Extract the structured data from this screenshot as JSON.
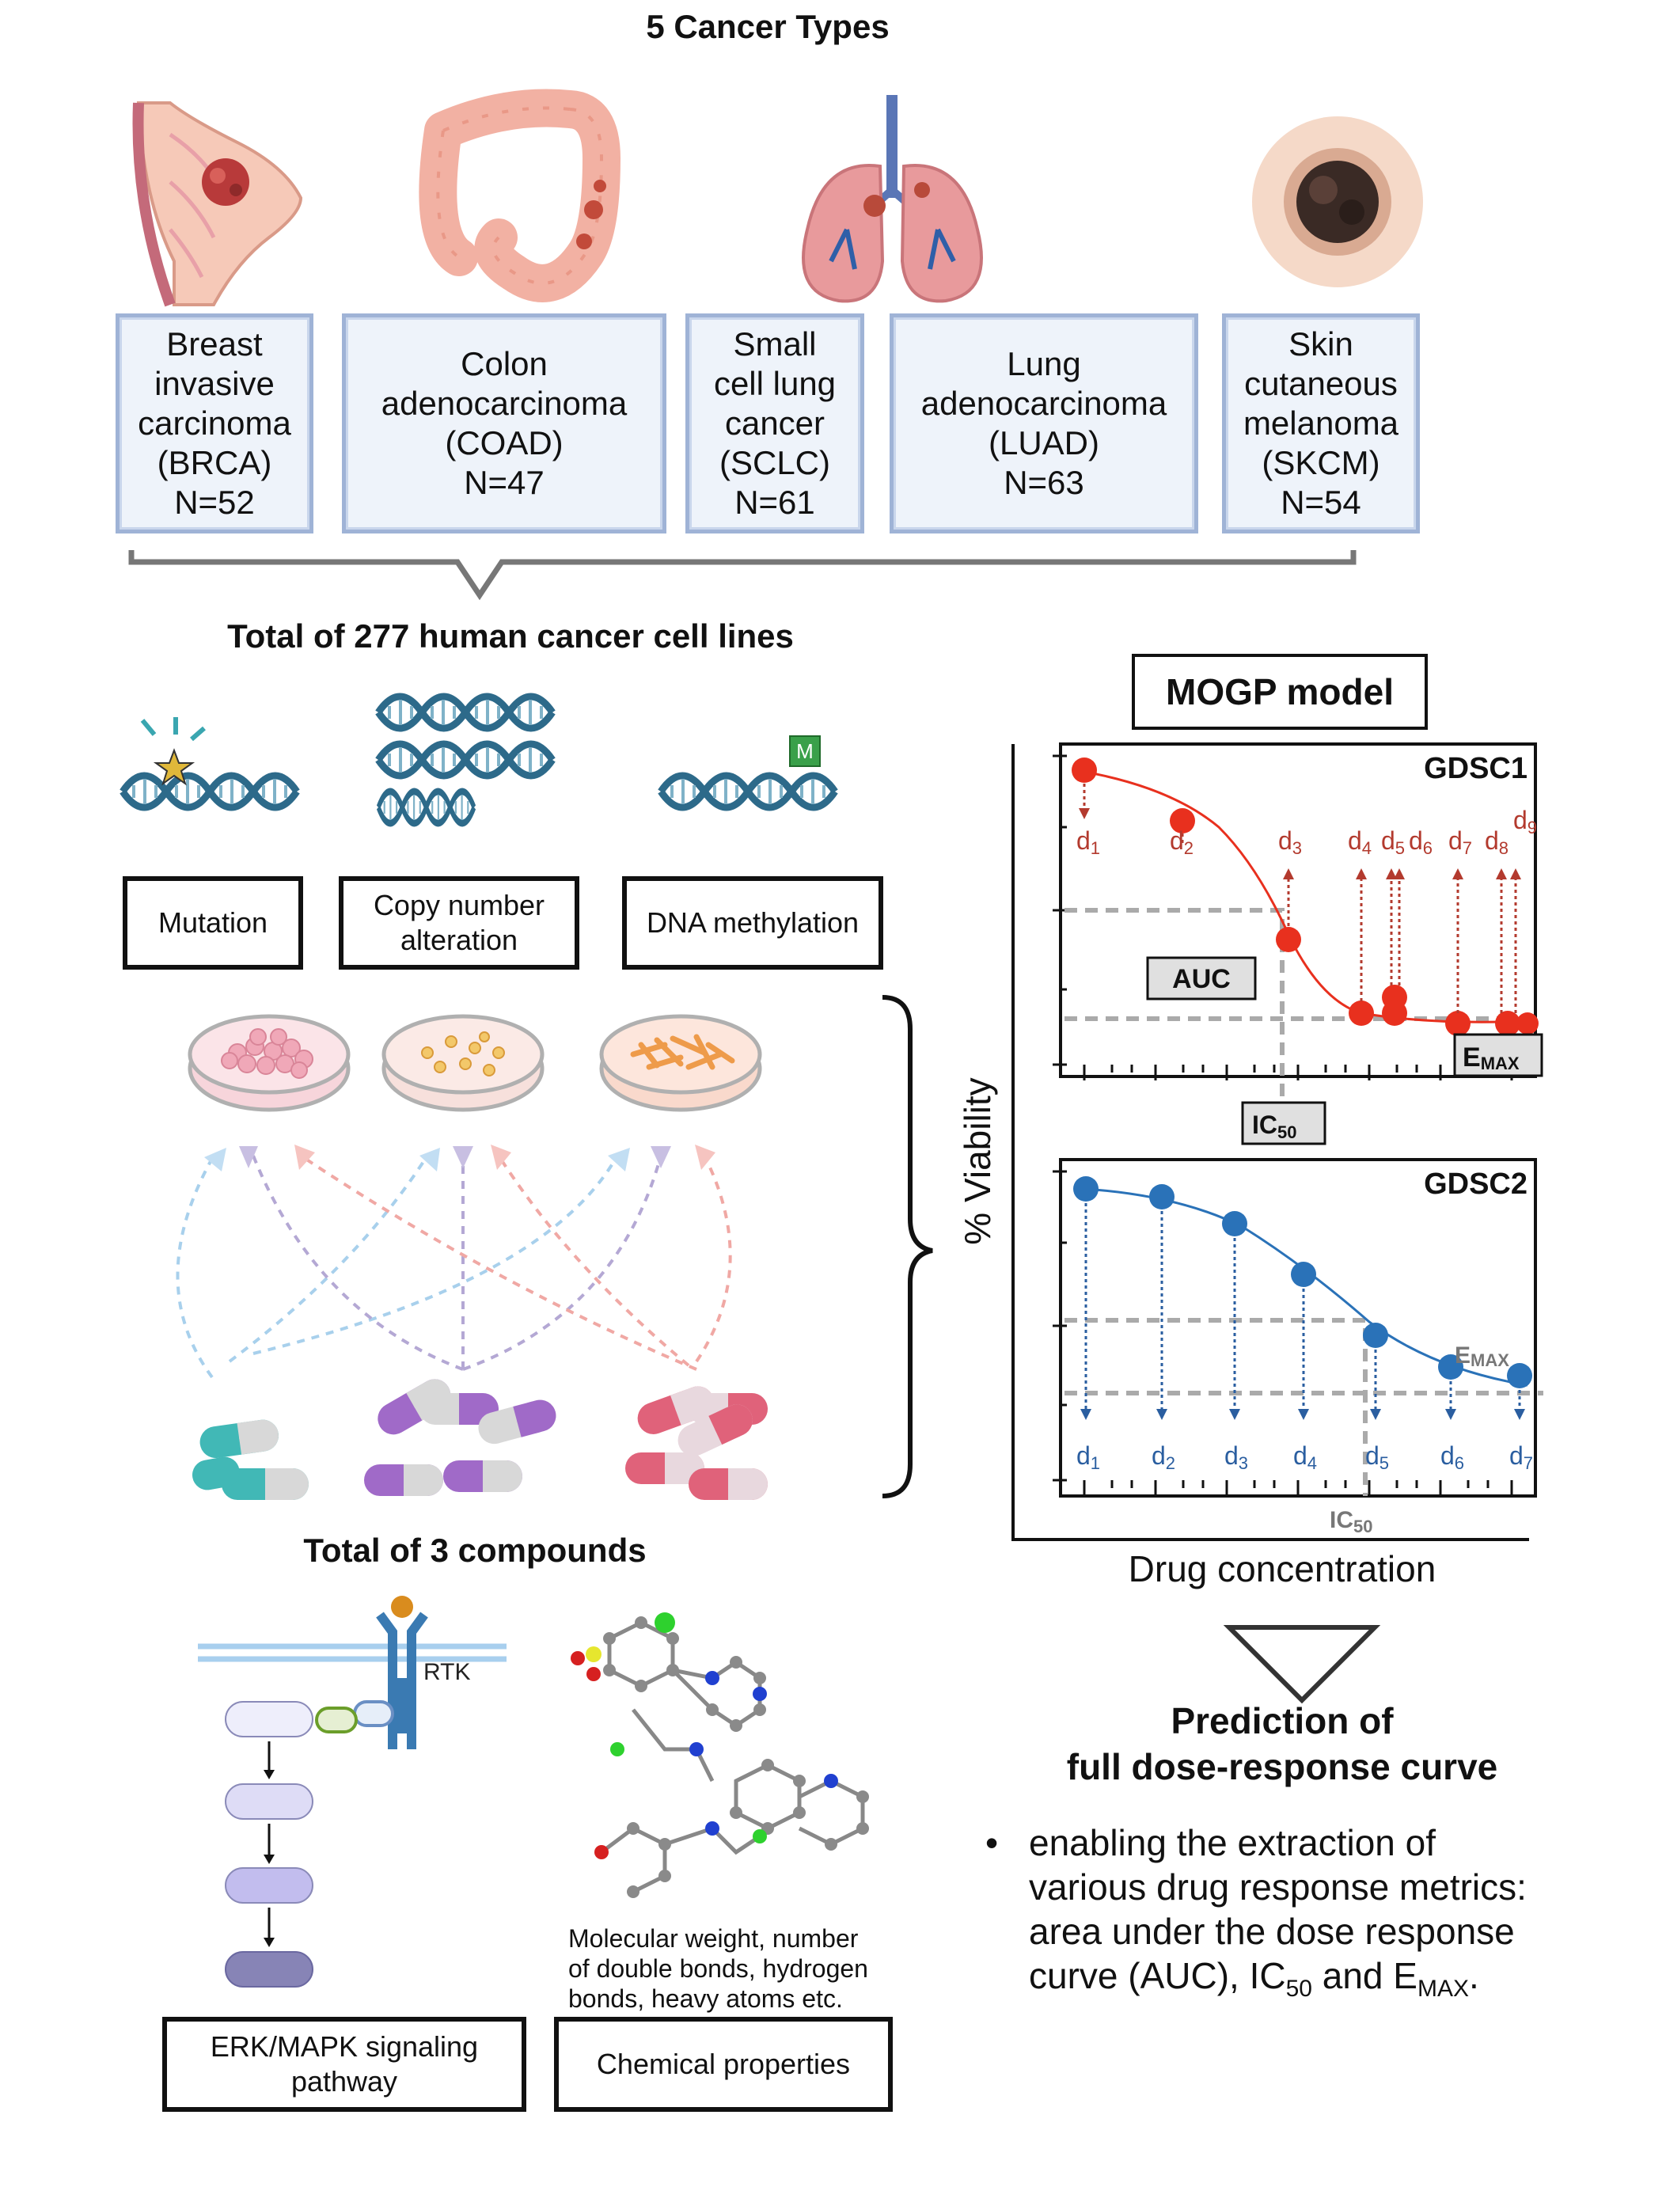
{
  "header": {
    "title": "5 Cancer Types"
  },
  "cancer_types": [
    {
      "lines": [
        "Breast",
        "invasive",
        "carcinoma",
        "(BRCA)",
        "N=52"
      ]
    },
    {
      "lines": [
        "Colon",
        "adenocarcinoma",
        "(COAD)",
        "N=47"
      ]
    },
    {
      "lines": [
        "Small",
        "cell lung",
        "cancer",
        "(SCLC)",
        "N=61"
      ]
    },
    {
      "lines": [
        "Lung",
        "adenocarcinoma",
        "(LUAD)",
        "N=63"
      ]
    },
    {
      "lines": [
        "Skin",
        "cutaneous",
        "melanoma",
        "(SKCM)",
        "N=54"
      ]
    }
  ],
  "cell_lines_title": "Total of 277 human cancer cell lines",
  "omics": {
    "mutation": "Mutation",
    "cna_line1": "Copy number",
    "cna_line2": "alteration",
    "methylation": "DNA methylation",
    "methyl_mark": "M"
  },
  "compounds_title": "Total of 3 compounds",
  "pathway": {
    "rtk_label": "RTK",
    "box_line1": "ERK/MAPK signaling",
    "box_line2": "pathway"
  },
  "chemical": {
    "desc_line1": "Molecular weight, number",
    "desc_line2": "of double bonds, hydrogen",
    "desc_line3": "bonds, heavy atoms etc.",
    "box_label": "Chemical properties"
  },
  "model": {
    "title": "MOGP model",
    "y_label": "% Viability",
    "x_label": "Drug concentration"
  },
  "gdsc1": {
    "title": "GDSC1",
    "dose_labels": [
      "d",
      "d",
      "d",
      "d",
      "d",
      "d",
      "d",
      "d",
      "d"
    ],
    "dose_subs": [
      "1",
      "2",
      "3",
      "4",
      "5",
      "6",
      "7",
      "8",
      "9"
    ],
    "auc_label": "AUC",
    "ic50_main": "IC",
    "ic50_sub": "50",
    "emax_main": "E",
    "emax_sub": "MAX",
    "color": "#e8301e"
  },
  "gdsc2": {
    "title": "GDSC2",
    "dose_labels": [
      "d",
      "d",
      "d",
      "d",
      "d",
      "d",
      "d"
    ],
    "dose_subs": [
      "1",
      "2",
      "3",
      "4",
      "5",
      "6",
      "7"
    ],
    "ic50_main": "IC",
    "ic50_sub": "50",
    "emax_main": "E",
    "emax_sub": "MAX",
    "color": "#2a72b8"
  },
  "prediction": {
    "line1": "Prediction of",
    "line2": "full dose-response curve"
  },
  "bullet": {
    "line1": "enabling the extraction of",
    "line2": "various drug response metrics:",
    "line3": "area under the dose response",
    "line4_a": "curve (AUC), IC",
    "line4_sub1": "50",
    "line4_b": " and E",
    "line4_sub2": "MAX",
    "line4_c": "."
  }
}
